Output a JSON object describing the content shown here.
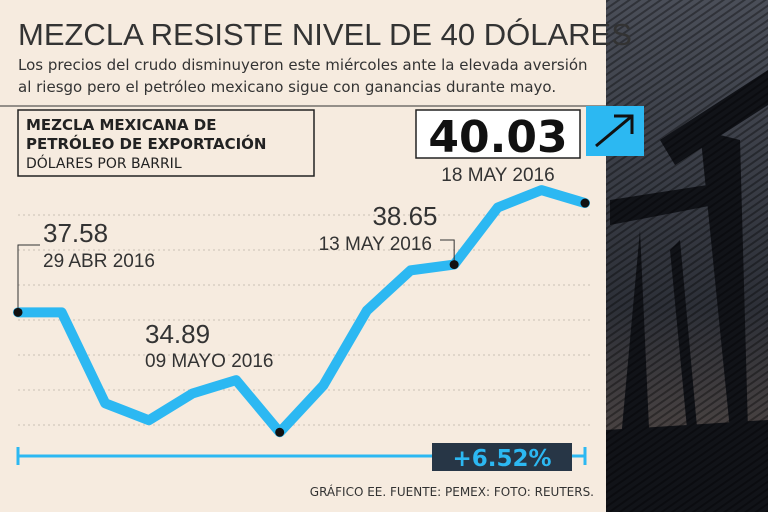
{
  "chart_data": {
    "type": "line",
    "title": "MEZCLA RESISTE NIVEL DE 40 DÓLARES",
    "subtitle": [
      "Los precios del crudo disminuyeron este miércoles ante la elevada aversión",
      "al riesgo pero el petróleo mexicano sigue con ganancias durante mayo."
    ],
    "series_title": [
      "MEZCLA MEXICANA DE",
      "PETRÓLEO DE EXPORTACIÓN"
    ],
    "y_label": "DÓLARES POR BARRIL",
    "categories": [
      null,
      null,
      null,
      null,
      null,
      null,
      null,
      null,
      null,
      null,
      null,
      null,
      null,
      null
    ],
    "values": [
      37.58,
      37.58,
      35.54,
      35.16,
      35.76,
      36.06,
      34.89,
      35.94,
      37.62,
      38.52,
      38.65,
      39.93,
      40.32,
      40.03
    ],
    "color": "#2cb8f2",
    "ylim": [
      34,
      41.6
    ],
    "annotations": [
      {
        "index": 0,
        "date": "29 ABR 2016"
      },
      {
        "index": 6,
        "date": "09 MAYO 2016"
      },
      {
        "index": 10,
        "date": "13 MAY 2016"
      },
      {
        "index": 13,
        "date": "18 MAY 2016"
      }
    ],
    "change": "+6.52%",
    "source": "GRÁFICO EE. FUENTE: PEMEX: FOTO: REUTERS."
  }
}
